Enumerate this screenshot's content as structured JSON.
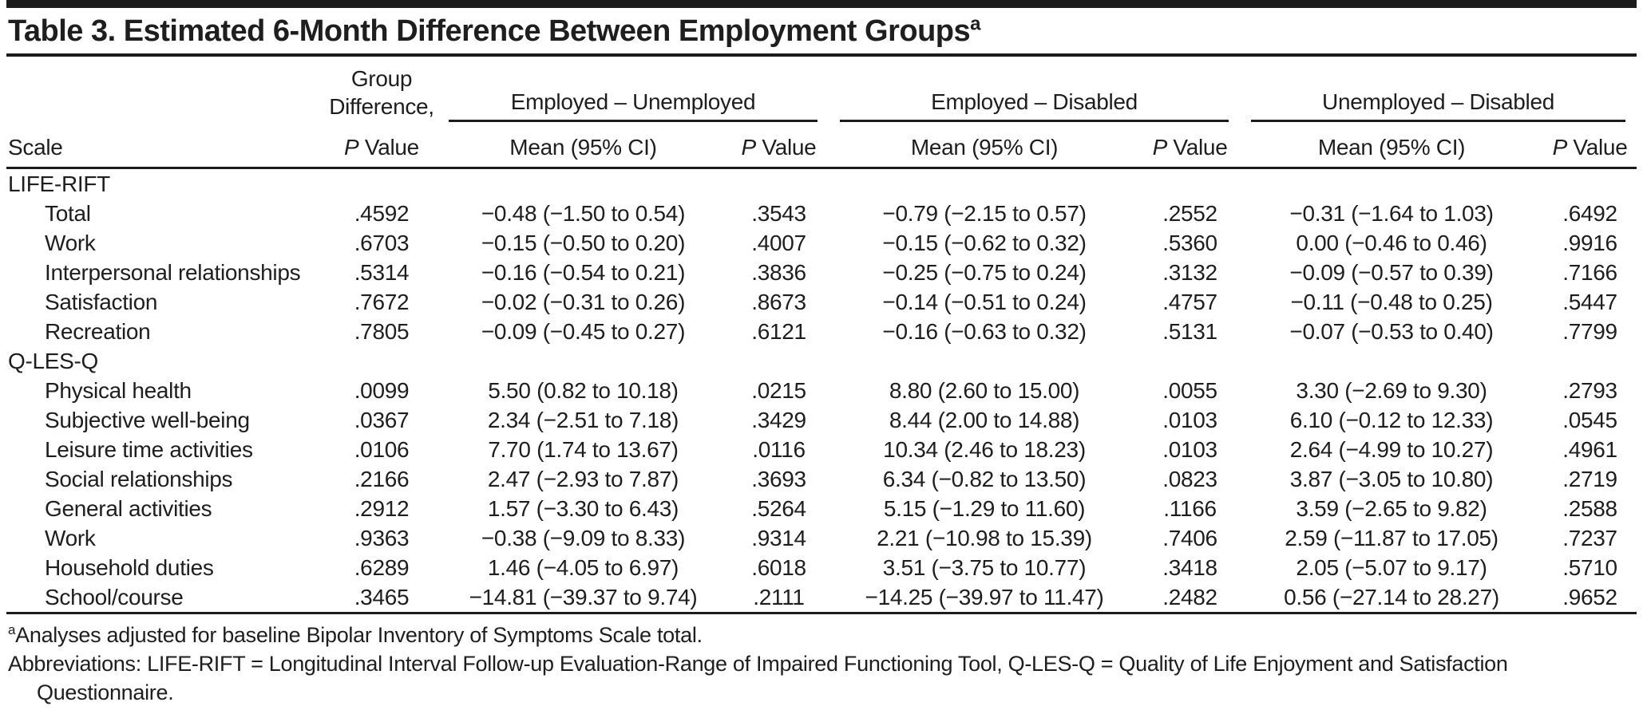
{
  "title": {
    "text": "Table 3. Estimated 6-Month Difference Between Employment Groups",
    "superscript": "a"
  },
  "colors": {
    "background": "#ffffff",
    "text": "#1e1e1e",
    "rule": "#1c1c1c"
  },
  "header": {
    "scale_label": "Scale",
    "group_difference": {
      "line1": "Group",
      "line2": "Difference,",
      "p_label": "P Value"
    },
    "spanners": [
      {
        "label": "Employed – Unemployed"
      },
      {
        "label": "Employed – Disabled"
      },
      {
        "label": "Unemployed – Disabled"
      }
    ],
    "sub_columns": {
      "mean_label": "Mean (95% CI)",
      "p_label": "P Value"
    }
  },
  "sections": [
    {
      "name": "LIFE-RIFT",
      "rows": [
        {
          "scale": "Total",
          "values": [
            ".4592",
            "−0.48 (−1.50 to 0.54)",
            ".3543",
            "−0.79 (−2.15 to 0.57)",
            ".2552",
            "−0.31 (−1.64 to 1.03)",
            ".6492"
          ]
        },
        {
          "scale": "Work",
          "values": [
            ".6703",
            "−0.15 (−0.50 to 0.20)",
            ".4007",
            "−0.15 (−0.62 to 0.32)",
            ".5360",
            "0.00 (−0.46 to 0.46)",
            ".9916"
          ]
        },
        {
          "scale": "Interpersonal relationships",
          "values": [
            ".5314",
            "−0.16 (−0.54 to 0.21)",
            ".3836",
            "−0.25 (−0.75 to 0.24)",
            ".3132",
            "−0.09 (−0.57 to 0.39)",
            ".7166"
          ]
        },
        {
          "scale": "Satisfaction",
          "values": [
            ".7672",
            "−0.02 (−0.31 to 0.26)",
            ".8673",
            "−0.14 (−0.51 to 0.24)",
            ".4757",
            "−0.11 (−0.48 to 0.25)",
            ".5447"
          ]
        },
        {
          "scale": "Recreation",
          "values": [
            ".7805",
            "−0.09 (−0.45 to 0.27)",
            ".6121",
            "−0.16 (−0.63 to 0.32)",
            ".5131",
            "−0.07 (−0.53 to 0.40)",
            ".7799"
          ]
        }
      ]
    },
    {
      "name": "Q-LES-Q",
      "rows": [
        {
          "scale": "Physical health",
          "values": [
            ".0099",
            "5.50 (0.82 to 10.18)",
            ".0215",
            "8.80 (2.60 to 15.00)",
            ".0055",
            "3.30 (−2.69 to 9.30)",
            ".2793"
          ]
        },
        {
          "scale": "Subjective well-being",
          "values": [
            ".0367",
            "2.34 (−2.51 to 7.18)",
            ".3429",
            "8.44 (2.00 to 14.88)",
            ".0103",
            "6.10 (−0.12 to 12.33)",
            ".0545"
          ]
        },
        {
          "scale": "Leisure time activities",
          "values": [
            ".0106",
            "7.70 (1.74 to 13.67)",
            ".0116",
            "10.34 (2.46 to 18.23)",
            ".0103",
            "2.64 (−4.99 to 10.27)",
            ".4961"
          ]
        },
        {
          "scale": "Social relationships",
          "values": [
            ".2166",
            "2.47 (−2.93 to 7.87)",
            ".3693",
            "6.34 (−0.82 to 13.50)",
            ".0823",
            "3.87 (−3.05 to 10.80)",
            ".2719"
          ]
        },
        {
          "scale": "General activities",
          "values": [
            ".2912",
            "1.57 (−3.30 to 6.43)",
            ".5264",
            "5.15 (−1.29 to 11.60)",
            ".1166",
            "3.59 (−2.65 to 9.82)",
            ".2588"
          ]
        },
        {
          "scale": "Work",
          "values": [
            ".9363",
            "−0.38 (−9.09 to 8.33)",
            ".9314",
            "2.21 (−10.98 to 15.39)",
            ".7406",
            "2.59 (−11.87 to 17.05)",
            ".7237"
          ]
        },
        {
          "scale": "Household duties",
          "values": [
            ".6289",
            "1.46 (−4.05 to 6.97)",
            ".6018",
            "3.51 (−3.75 to 10.77)",
            ".3418",
            "2.05 (−5.07 to 9.17)",
            ".5710"
          ]
        },
        {
          "scale": "School/course",
          "values": [
            ".3465",
            "−14.81 (−39.37 to 9.74)",
            ".2111",
            "−14.25 (−39.97 to 11.47)",
            ".2482",
            "0.56 (−27.14 to 28.27)",
            ".9652"
          ]
        }
      ]
    }
  ],
  "footnotes": [
    {
      "marker": "a",
      "hanging": false,
      "text": "Analyses adjusted for baseline Bipolar Inventory of Symptoms Scale total."
    },
    {
      "marker": "",
      "hanging": true,
      "text": "Abbreviations: LIFE-RIFT = Longitudinal Interval Follow-up Evaluation-Range of Impaired Functioning Tool, Q-LES-Q = Quality of Life Enjoyment and Satisfaction Questionnaire."
    }
  ]
}
